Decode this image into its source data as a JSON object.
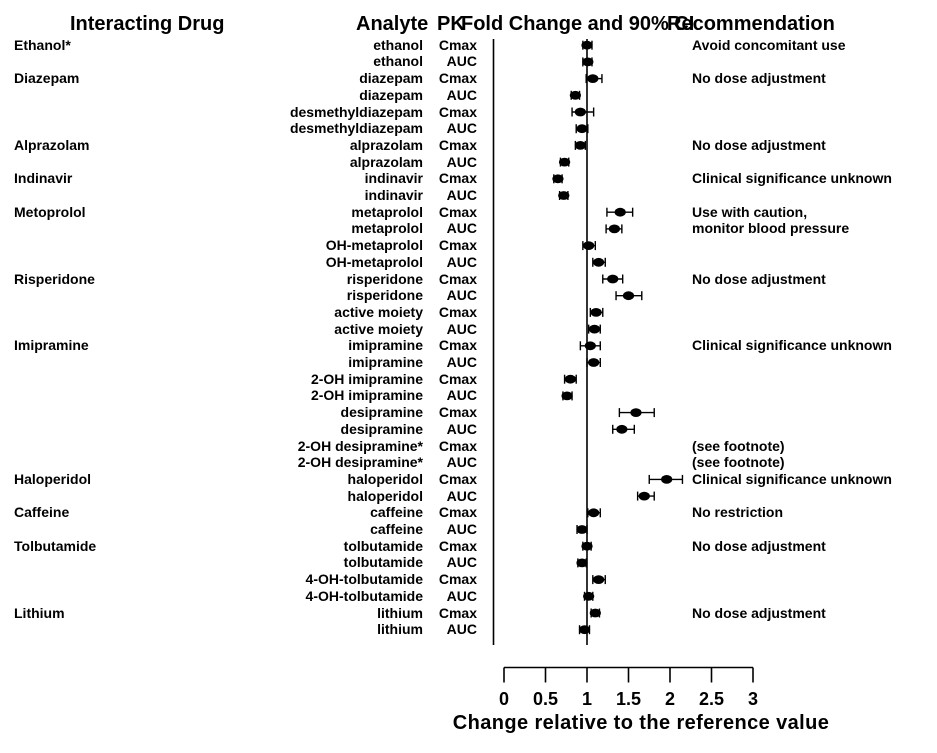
{
  "headers": {
    "interacting_drug": "Interacting Drug",
    "analyte": "Analyte",
    "pk": "PK",
    "fold_change": "Fold Change and 90% CI",
    "recommendation": "Recommendation"
  },
  "colors": {
    "marker": "#000000",
    "line": "#000000",
    "text": "#000000",
    "background": "#ffffff"
  },
  "chart_data": {
    "type": "scatter",
    "subtype": "forest-plot-with-error-bars",
    "title": "",
    "xlabel": "Change relative to the reference value",
    "xlim": [
      0,
      3
    ],
    "x_ticks": [
      0,
      0.5,
      1,
      1.5,
      2,
      2.5,
      3
    ],
    "x_tick_labels": [
      "0",
      "0.5",
      "1",
      "1.5",
      "2",
      "2.5",
      "3"
    ],
    "reference_line_x": 1,
    "grid": false,
    "legend": "none",
    "rows": [
      {
        "drug": "Ethanol*",
        "analyte": "ethanol",
        "pk": "Cmax",
        "value": 1.0,
        "ci_low": 0.95,
        "ci_high": 1.06,
        "rec": "Avoid concomitant use"
      },
      {
        "drug": "",
        "analyte": "ethanol",
        "pk": "AUC",
        "value": 1.01,
        "ci_low": 0.95,
        "ci_high": 1.06,
        "rec": ""
      },
      {
        "drug": "Diazepam",
        "analyte": "diazepam",
        "pk": "Cmax",
        "value": 1.07,
        "ci_low": 0.99,
        "ci_high": 1.18,
        "rec": "No dose adjustment"
      },
      {
        "drug": "",
        "analyte": "diazepam",
        "pk": "AUC",
        "value": 0.86,
        "ci_low": 0.81,
        "ci_high": 0.91,
        "rec": ""
      },
      {
        "drug": "",
        "analyte": "desmethyldiazepam",
        "pk": "Cmax",
        "value": 0.92,
        "ci_low": 0.82,
        "ci_high": 1.08,
        "rec": ""
      },
      {
        "drug": "",
        "analyte": "desmethyldiazepam",
        "pk": "AUC",
        "value": 0.94,
        "ci_low": 0.87,
        "ci_high": 1.01,
        "rec": ""
      },
      {
        "drug": "Alprazolam",
        "analyte": "alprazolam",
        "pk": "Cmax",
        "value": 0.92,
        "ci_low": 0.86,
        "ci_high": 0.98,
        "rec": "No dose adjustment"
      },
      {
        "drug": "",
        "analyte": "alprazolam",
        "pk": "AUC",
        "value": 0.73,
        "ci_low": 0.68,
        "ci_high": 0.78,
        "rec": ""
      },
      {
        "drug": "Indinavir",
        "analyte": "indinavir",
        "pk": "Cmax",
        "value": 0.65,
        "ci_low": 0.6,
        "ci_high": 0.7,
        "rec": "Clinical significance unknown"
      },
      {
        "drug": "",
        "analyte": "indinavir",
        "pk": "AUC",
        "value": 0.72,
        "ci_low": 0.67,
        "ci_high": 0.77,
        "rec": ""
      },
      {
        "drug": "Metoprolol",
        "analyte": "metaprolol",
        "pk": "Cmax",
        "value": 1.4,
        "ci_low": 1.24,
        "ci_high": 1.55,
        "rec": "Use with caution,"
      },
      {
        "drug": "",
        "analyte": "metaprolol",
        "pk": "AUC",
        "value": 1.33,
        "ci_low": 1.23,
        "ci_high": 1.42,
        "rec": "monitor blood pressure"
      },
      {
        "drug": "",
        "analyte": "OH-metaprolol",
        "pk": "Cmax",
        "value": 1.02,
        "ci_low": 0.95,
        "ci_high": 1.1,
        "rec": ""
      },
      {
        "drug": "",
        "analyte": "OH-metaprolol",
        "pk": "AUC",
        "value": 1.14,
        "ci_low": 1.07,
        "ci_high": 1.22,
        "rec": ""
      },
      {
        "drug": "Risperidone",
        "analyte": "risperidone",
        "pk": "Cmax",
        "value": 1.31,
        "ci_low": 1.19,
        "ci_high": 1.43,
        "rec": "No dose adjustment"
      },
      {
        "drug": "",
        "analyte": "risperidone",
        "pk": "AUC",
        "value": 1.5,
        "ci_low": 1.35,
        "ci_high": 1.66,
        "rec": ""
      },
      {
        "drug": "",
        "analyte": "active moiety",
        "pk": "Cmax",
        "value": 1.11,
        "ci_low": 1.04,
        "ci_high": 1.19,
        "rec": ""
      },
      {
        "drug": "",
        "analyte": "active moiety",
        "pk": "AUC",
        "value": 1.09,
        "ci_low": 1.02,
        "ci_high": 1.16,
        "rec": ""
      },
      {
        "drug": "Imipramine",
        "analyte": "imipramine",
        "pk": "Cmax",
        "value": 1.04,
        "ci_low": 0.92,
        "ci_high": 1.16,
        "rec": "Clinical significance unknown"
      },
      {
        "drug": "",
        "analyte": "imipramine",
        "pk": "AUC",
        "value": 1.08,
        "ci_low": 1.0,
        "ci_high": 1.16,
        "rec": ""
      },
      {
        "drug": "",
        "analyte": "2-OH imipramine",
        "pk": "Cmax",
        "value": 0.8,
        "ci_low": 0.73,
        "ci_high": 0.87,
        "rec": ""
      },
      {
        "drug": "",
        "analyte": "2-OH imipramine",
        "pk": "AUC",
        "value": 0.76,
        "ci_low": 0.71,
        "ci_high": 0.82,
        "rec": ""
      },
      {
        "drug": "",
        "analyte": "desipramine",
        "pk": "Cmax",
        "value": 1.59,
        "ci_low": 1.39,
        "ci_high": 1.81,
        "rec": ""
      },
      {
        "drug": "",
        "analyte": "desipramine",
        "pk": "AUC",
        "value": 1.42,
        "ci_low": 1.31,
        "ci_high": 1.57,
        "rec": ""
      },
      {
        "drug": "",
        "analyte": "2-OH desipramine*",
        "pk": "Cmax",
        "value": null,
        "ci_low": null,
        "ci_high": null,
        "rec": "(see footnote)"
      },
      {
        "drug": "",
        "analyte": "2-OH desipramine*",
        "pk": "AUC",
        "value": null,
        "ci_low": null,
        "ci_high": null,
        "rec": "(see footnote)"
      },
      {
        "drug": "Haloperidol",
        "analyte": "haloperidol",
        "pk": "Cmax",
        "value": 1.96,
        "ci_low": 1.75,
        "ci_high": 2.15,
        "rec": "Clinical significance unknown"
      },
      {
        "drug": "",
        "analyte": "haloperidol",
        "pk": "AUC",
        "value": 1.69,
        "ci_low": 1.61,
        "ci_high": 1.81,
        "rec": ""
      },
      {
        "drug": "Caffeine",
        "analyte": "caffeine",
        "pk": "Cmax",
        "value": 1.08,
        "ci_low": 1.01,
        "ci_high": 1.16,
        "rec": "No restriction"
      },
      {
        "drug": "",
        "analyte": "caffeine",
        "pk": "AUC",
        "value": 0.94,
        "ci_low": 0.88,
        "ci_high": 1.0,
        "rec": ""
      },
      {
        "drug": "Tolbutamide",
        "analyte": "tolbutamide",
        "pk": "Cmax",
        "value": 1.0,
        "ci_low": 0.95,
        "ci_high": 1.05,
        "rec": "No dose adjustment"
      },
      {
        "drug": "",
        "analyte": "tolbutamide",
        "pk": "AUC",
        "value": 0.94,
        "ci_low": 0.89,
        "ci_high": 0.99,
        "rec": ""
      },
      {
        "drug": "",
        "analyte": "4-OH-tolbutamide",
        "pk": "Cmax",
        "value": 1.14,
        "ci_low": 1.07,
        "ci_high": 1.22,
        "rec": ""
      },
      {
        "drug": "",
        "analyte": "4-OH-tolbutamide",
        "pk": "AUC",
        "value": 1.02,
        "ci_low": 0.97,
        "ci_high": 1.07,
        "rec": ""
      },
      {
        "drug": "Lithium",
        "analyte": "lithium",
        "pk": "Cmax",
        "value": 1.1,
        "ci_low": 1.05,
        "ci_high": 1.15,
        "rec": "No dose adjustment"
      },
      {
        "drug": "",
        "analyte": "lithium",
        "pk": "AUC",
        "value": 0.97,
        "ci_low": 0.91,
        "ci_high": 1.03,
        "rec": ""
      }
    ]
  }
}
